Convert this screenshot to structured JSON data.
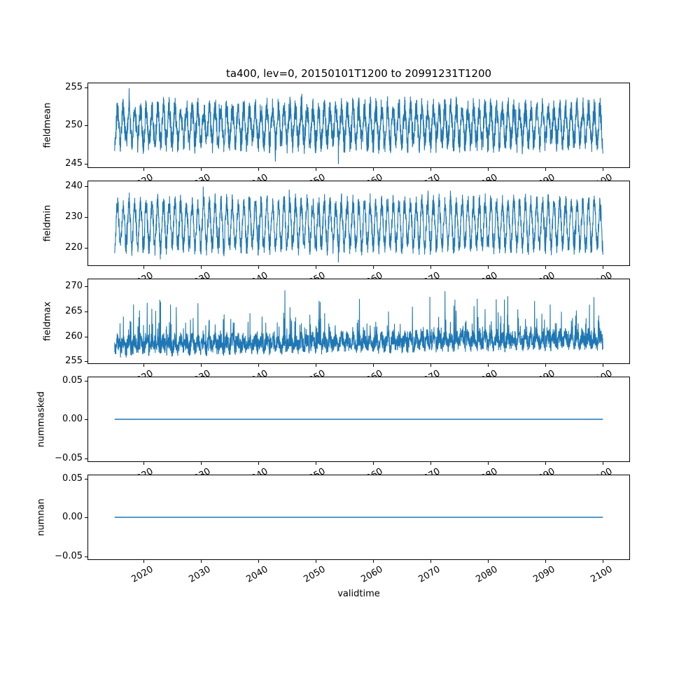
{
  "title": "ta400, lev=0, 20150101T1200 to 20991231T1200",
  "xlabel": "validtime",
  "chart_data": {
    "type": "line",
    "line_color": "#1f77b4",
    "grid": false,
    "legend": "none",
    "x_range": [
      2015.0,
      2100.0
    ],
    "x_tick_values": [
      2020,
      2030,
      2040,
      2050,
      2060,
      2070,
      2080,
      2090,
      2100
    ],
    "x_tick_labels": [
      "2020",
      "2030",
      "2040",
      "2050",
      "2060",
      "2070",
      "2080",
      "2090",
      "2100"
    ],
    "subplots": [
      {
        "ylabel": "fieldmean",
        "ylim": [
          244.4,
          255.6
        ],
        "ytick_values": [
          245,
          250,
          255
        ],
        "ytick_labels": [
          "245",
          "250",
          "255"
        ],
        "series_stats": {
          "mean": 250.0,
          "min": 245.1,
          "max": 255.0,
          "pattern": "dense annual oscillation around 250 K, typical envelope 246-254, occasional extremes 245 / 255"
        },
        "gen": {
          "kind": "seasonal",
          "n": 3060,
          "base": 250.0,
          "seasonal_amp": 2.2,
          "noise_amp": 1.6,
          "spike_prob": 0.02,
          "spike_amp": 1.2,
          "trend": 0,
          "seed": 101
        }
      },
      {
        "ylabel": "fieldmin",
        "ylim": [
          214.2,
          241.7
        ],
        "ytick_values": [
          220,
          230,
          240
        ],
        "ytick_labels": [
          "220",
          "230",
          "240"
        ],
        "series_stats": {
          "mean": 227.5,
          "min": 215.5,
          "max": 240.5,
          "pattern": "very dense annual oscillation around 227.5 K, typical envelope 218-237, extremes 215.5 / 240.5"
        },
        "gen": {
          "kind": "seasonal",
          "n": 3060,
          "base": 227.5,
          "seasonal_amp": 6.8,
          "noise_amp": 3.2,
          "spike_prob": 0.04,
          "spike_amp": 2.0,
          "trend": 0,
          "seed": 202
        }
      },
      {
        "ylabel": "fieldmax",
        "ylim": [
          254.5,
          271.5
        ],
        "ytick_values": [
          255,
          260,
          265,
          270
        ],
        "ytick_labels": [
          "255",
          "260",
          "265",
          "270"
        ],
        "series_stats": {
          "mean": 259.3,
          "min": 255.6,
          "max": 271.0,
          "pattern": "noisy band 256-262 K with frequent upward spikes to 265-271, slight upward drift with time"
        },
        "gen": {
          "kind": "spiky",
          "n": 3060,
          "base": 258.2,
          "seasonal_amp": 0.8,
          "noise_amp": 1.6,
          "spike_prob": 0.1,
          "spike_amp": 4.0,
          "bigspike_prob": 0.015,
          "bigspike_amp": 4.5,
          "trend": 0.015,
          "seed": 303
        }
      },
      {
        "ylabel": "nummasked",
        "ylim": [
          -0.055,
          0.055
        ],
        "ytick_values": [
          0.05,
          0.0,
          -0.05
        ],
        "ytick_labels": [
          "0.05",
          "0.00",
          "−0.05"
        ],
        "series_stats": {
          "constant": 0.0,
          "pattern": "flat line at exactly 0.00 for the whole period"
        },
        "gen": {
          "kind": "constant",
          "n": 2,
          "value": 0.0
        }
      },
      {
        "ylabel": "numnan",
        "ylim": [
          -0.055,
          0.055
        ],
        "ytick_values": [
          0.05,
          0.0,
          -0.05
        ],
        "ytick_labels": [
          "0.05",
          "0.00",
          "−0.05"
        ],
        "series_stats": {
          "constant": 0.0,
          "pattern": "flat line at exactly 0.00 for the whole period"
        },
        "gen": {
          "kind": "constant",
          "n": 2,
          "value": 0.0
        }
      }
    ]
  }
}
